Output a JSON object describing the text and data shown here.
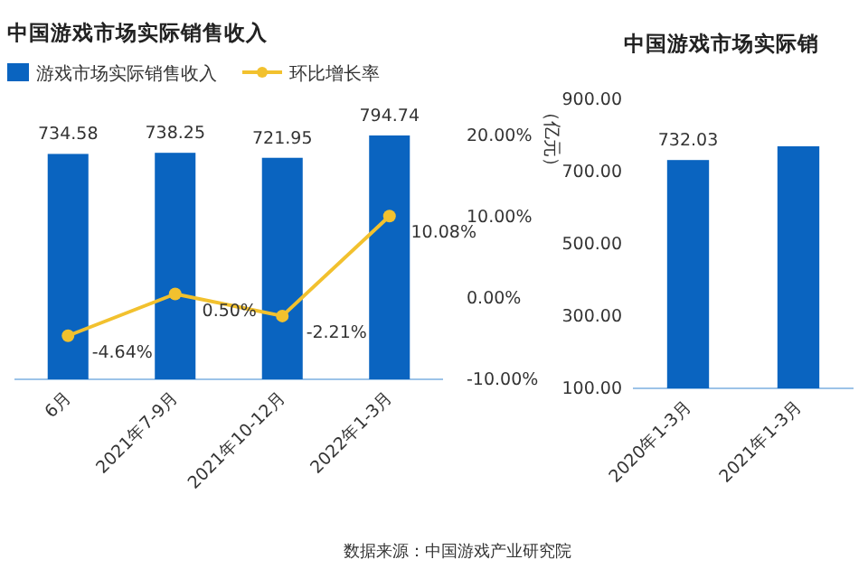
{
  "chart_data": [
    {
      "type": "bar",
      "title": "中国游戏市场实际销售收入",
      "categories": [
        "6月",
        "2021年7-9月",
        "2021年10-12月",
        "2022年1-3月"
      ],
      "y2lim": [
        -10,
        20
      ],
      "y2ticks": [
        {
          "value": -10,
          "label": "-10.00%"
        },
        {
          "value": 0,
          "label": "0.00%"
        },
        {
          "value": 10,
          "label": "10.00%"
        },
        {
          "value": 20,
          "label": "20.00%"
        }
      ],
      "legend": "top",
      "marker": "circle",
      "annotations": [
        "数据来源：中国游戏产业研究院"
      ],
      "series": [
        {
          "name": "游戏市场实际销售收入",
          "color": "#0a64c0",
          "values": [
            734.58,
            738.25,
            721.95,
            794.74
          ],
          "value_labels": [
            "734.58",
            "738.25",
            "721.95",
            "794.74"
          ]
        },
        {
          "type": "line",
          "axis": "y2",
          "name": "环比增长率",
          "color": "#f2c12e",
          "values": [
            -4.64,
            0.5,
            -2.21,
            10.08
          ],
          "value_labels": [
            "-4.64%",
            "0.50%",
            "-2.21%",
            "10.08%"
          ]
        }
      ]
    },
    {
      "type": "bar",
      "title": "中国游戏市场实际销",
      "ylabel": "（亿元）",
      "categories": [
        "2020年1-3月",
        "2021年1-3月"
      ],
      "ylim": [
        100,
        900
      ],
      "yticks": [
        {
          "value": 100,
          "label": "100.00"
        },
        {
          "value": 300,
          "label": "300.00"
        },
        {
          "value": 500,
          "label": "500.00"
        },
        {
          "value": 700,
          "label": "700.00"
        },
        {
          "value": 900,
          "label": "900.00"
        }
      ],
      "series": [
        {
          "color": "#0a64c0",
          "values": [
            732.03,
            770
          ],
          "value_labels": [
            "732.03",
            null
          ]
        }
      ]
    }
  ]
}
